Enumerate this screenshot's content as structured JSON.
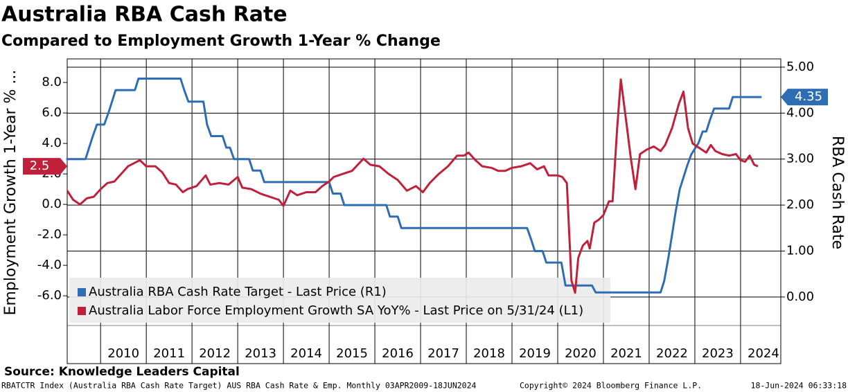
{
  "chart_data": {
    "type": "line",
    "title": "Australia RBA Cash Rate",
    "subtitle": "Compared to Employment Growth 1-Year % Change",
    "ylabel": "Employment Growth 1-Year % ...",
    "y2label": "RBA Cash Rate",
    "xlim": [
      2009.27,
      2024.88
    ],
    "xticks": [
      2010,
      2011,
      2012,
      2013,
      2014,
      2015,
      2016,
      2017,
      2018,
      2019,
      2020,
      2021,
      2022,
      2023,
      2024
    ],
    "ylim": [
      -7.95,
      9.55
    ],
    "yticks": [
      {
        "value": -6,
        "label": "-6.0"
      },
      {
        "value": -4,
        "label": "-4.0"
      },
      {
        "value": -2,
        "label": "-2.0"
      },
      {
        "value": 0,
        "label": "0.0"
      },
      {
        "value": 2,
        "label": "2.0"
      },
      {
        "value": 4,
        "label": "4.0"
      },
      {
        "value": 6,
        "label": "6.0"
      },
      {
        "value": 8,
        "label": "8.0"
      }
    ],
    "y2lim": [
      -0.62,
      5.18
    ],
    "y2ticks": [
      {
        "value": 0,
        "label": "0.00"
      },
      {
        "value": 1,
        "label": "1.00"
      },
      {
        "value": 2,
        "label": "2.00"
      },
      {
        "value": 3,
        "label": "3.00"
      },
      {
        "value": 4,
        "label": "4.00"
      },
      {
        "value": 5,
        "label": "5.00"
      }
    ],
    "grid": true,
    "legend": "lower left",
    "series": [
      {
        "name": "Australia RBA Cash Rate Target - Last Price (R1)",
        "color": "#2e6db4",
        "axis": "y2",
        "x": [
          2009.25,
          2009.67,
          2009.75,
          2009.83,
          2009.92,
          2010.08,
          2010.17,
          2010.25,
          2010.33,
          2010.75,
          2010.83,
          2011.75,
          2011.83,
          2011.92,
          2012.25,
          2012.33,
          2012.42,
          2012.67,
          2012.75,
          2012.83,
          2012.92,
          2013.25,
          2013.33,
          2013.5,
          2013.58,
          2015.0,
          2015.08,
          2015.25,
          2015.33,
          2016.25,
          2016.33,
          2016.5,
          2016.58,
          2019.33,
          2019.42,
          2019.5,
          2019.67,
          2019.75,
          2020.08,
          2020.17,
          2020.75,
          2020.83,
          2022.25,
          2022.33,
          2022.42,
          2022.5,
          2022.58,
          2022.67,
          2022.75,
          2022.83,
          2022.92,
          2023.08,
          2023.17,
          2023.25,
          2023.33,
          2023.42,
          2023.75,
          2023.83,
          2024.46
        ],
        "values": [
          3.0,
          3.0,
          3.25,
          3.5,
          3.75,
          3.75,
          4.0,
          4.25,
          4.5,
          4.5,
          4.75,
          4.75,
          4.5,
          4.25,
          4.25,
          3.75,
          3.5,
          3.5,
          3.25,
          3.25,
          3.0,
          3.0,
          2.75,
          2.75,
          2.5,
          2.5,
          2.25,
          2.25,
          2.0,
          2.0,
          1.75,
          1.75,
          1.5,
          1.5,
          1.25,
          1.0,
          1.0,
          0.75,
          0.75,
          0.25,
          0.25,
          0.1,
          0.1,
          0.35,
          0.85,
          1.35,
          1.85,
          2.35,
          2.6,
          2.85,
          3.1,
          3.35,
          3.6,
          3.6,
          3.85,
          4.1,
          4.1,
          4.35,
          4.35
        ]
      },
      {
        "name": "Australia Labor Force Employment Growth SA YoY% - Last Price on 5/31/24 (L1)",
        "color": "#c0203a",
        "axis": "y",
        "x": [
          2009.27,
          2009.4,
          2009.55,
          2009.7,
          2009.85,
          2010.0,
          2010.15,
          2010.3,
          2010.45,
          2010.6,
          2010.86,
          2011.0,
          2011.2,
          2011.35,
          2011.5,
          2011.65,
          2011.8,
          2011.9,
          2012.1,
          2012.3,
          2012.4,
          2012.6,
          2012.8,
          2013.0,
          2013.1,
          2013.3,
          2013.5,
          2013.7,
          2013.9,
          2014.0,
          2014.15,
          2014.3,
          2014.5,
          2014.7,
          2014.85,
          2015.0,
          2015.1,
          2015.3,
          2015.5,
          2015.75,
          2015.9,
          2016.1,
          2016.3,
          2016.5,
          2016.7,
          2016.9,
          2017.05,
          2017.2,
          2017.4,
          2017.6,
          2017.8,
          2017.95,
          2018.05,
          2018.2,
          2018.35,
          2018.55,
          2018.7,
          2018.85,
          2019.0,
          2019.2,
          2019.4,
          2019.55,
          2019.7,
          2019.8,
          2020.0,
          2020.1,
          2020.2,
          2020.3,
          2020.38,
          2020.45,
          2020.55,
          2020.65,
          2020.7,
          2020.8,
          2020.9,
          2021.0,
          2021.12,
          2021.2,
          2021.3,
          2021.38,
          2021.5,
          2021.6,
          2021.7,
          2021.8,
          2021.95,
          2022.1,
          2022.25,
          2022.35,
          2022.5,
          2022.65,
          2022.75,
          2022.85,
          2022.95,
          2023.1,
          2023.25,
          2023.35,
          2023.45,
          2023.6,
          2023.75,
          2023.9,
          2024.0,
          2024.1,
          2024.2,
          2024.3,
          2024.38
        ],
        "values": [
          0.9,
          0.3,
          0.0,
          0.4,
          0.5,
          1.0,
          1.4,
          1.5,
          2.0,
          2.5,
          2.9,
          2.5,
          2.5,
          2.1,
          1.4,
          1.3,
          0.8,
          1.0,
          1.2,
          1.9,
          1.3,
          1.4,
          1.3,
          1.8,
          1.1,
          1.0,
          0.7,
          0.5,
          0.3,
          -0.1,
          0.9,
          0.6,
          0.8,
          0.8,
          1.2,
          1.5,
          1.8,
          2.0,
          2.2,
          3.0,
          2.6,
          2.5,
          2.0,
          1.6,
          0.9,
          1.2,
          0.8,
          1.4,
          2.0,
          2.5,
          3.2,
          3.2,
          3.4,
          2.9,
          2.5,
          2.4,
          2.2,
          2.2,
          2.4,
          2.5,
          2.7,
          2.3,
          2.5,
          1.9,
          1.9,
          1.8,
          1.4,
          -5.0,
          -5.8,
          -3.5,
          -2.7,
          -2.4,
          -2.9,
          -1.2,
          -1.0,
          -0.7,
          0.2,
          0.2,
          5.0,
          8.2,
          5.4,
          3.0,
          1.0,
          3.3,
          3.6,
          3.8,
          3.5,
          3.9,
          5.0,
          6.6,
          7.4,
          5.0,
          4.0,
          3.7,
          3.4,
          3.9,
          3.5,
          3.3,
          3.2,
          3.3,
          2.9,
          2.8,
          3.2,
          2.6,
          2.5
        ]
      }
    ],
    "source": "Source: Knowledge Leaders Capital",
    "footer_left": "RBATCTR Index (Australia RBA Cash Rate Target) AUS RBA Cash Rate & Emp.  Monthly 03APR2009-18JUN2024",
    "footer_center": "Copyright© 2024 Bloomberg Finance L.P.",
    "footer_right": "18-Jun-2024 06:33:18"
  }
}
